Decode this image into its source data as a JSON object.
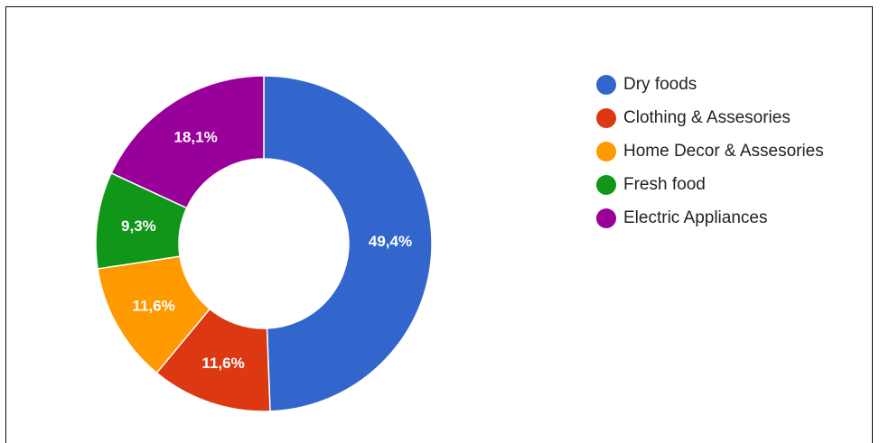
{
  "chart_data": {
    "type": "pie",
    "donut": true,
    "legend_position": "right",
    "slices": [
      {
        "label": "Dry foods",
        "value": 49.4,
        "display": "49,4%",
        "color": "#3366cc"
      },
      {
        "label": "Clothing & Assesories",
        "value": 11.6,
        "display": "11,6%",
        "color": "#dc3912"
      },
      {
        "label": "Home Decor & Assesories",
        "value": 11.6,
        "display": "11,6%",
        "color": "#ff9900"
      },
      {
        "label": "Fresh food",
        "value": 9.3,
        "display": "9,3%",
        "color": "#109618"
      },
      {
        "label": "Electric Appliances",
        "value": 18.1,
        "display": "18,1%",
        "color": "#990099"
      }
    ]
  }
}
